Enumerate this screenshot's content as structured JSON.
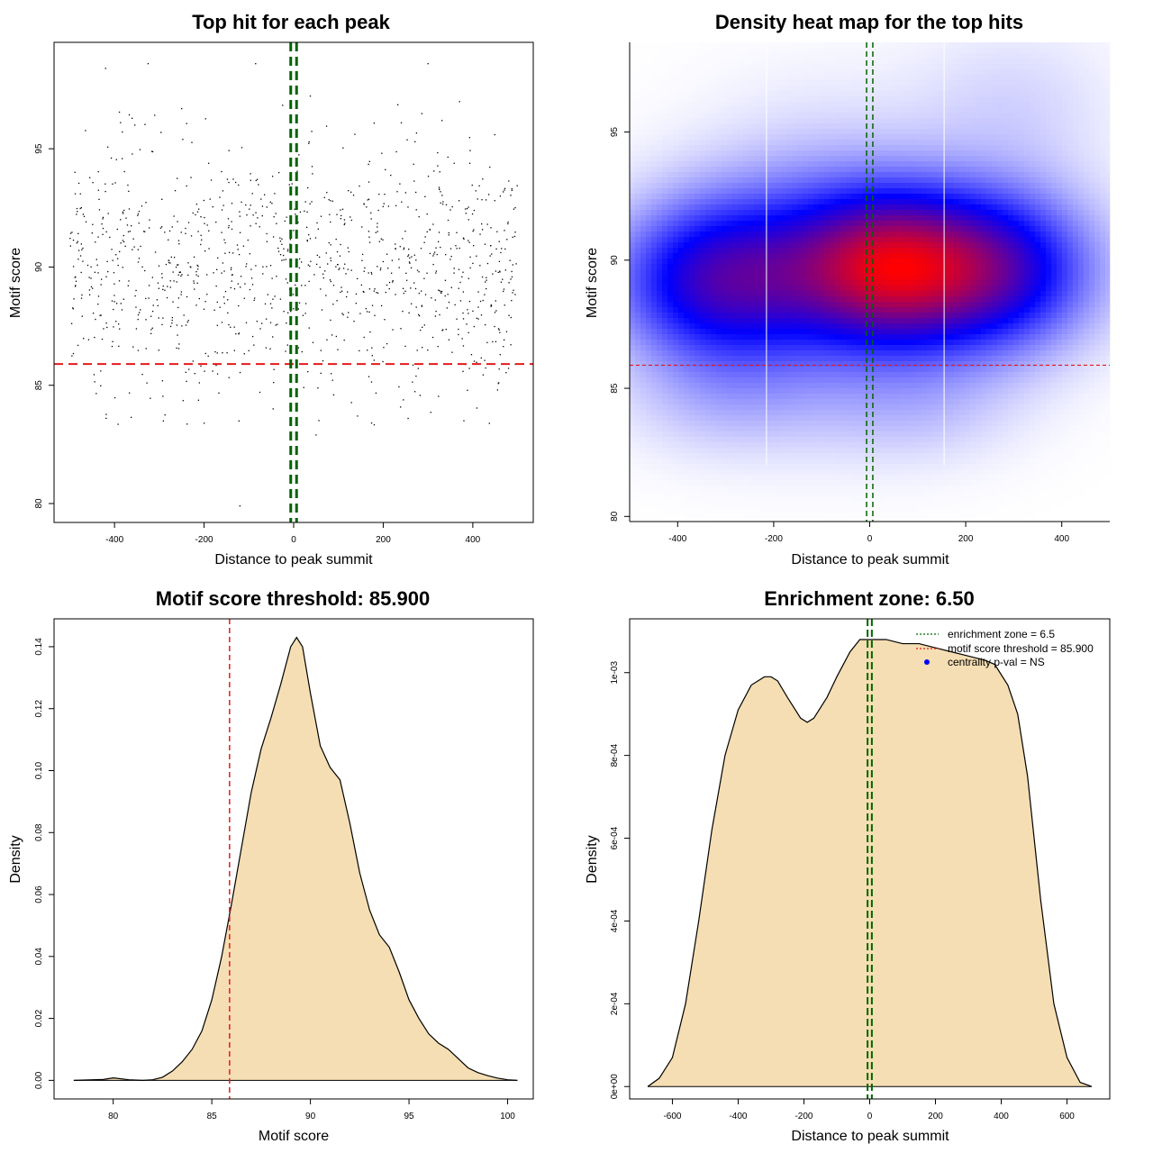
{
  "chart_data": [
    {
      "type": "scatter",
      "title": "Top hit for each peak",
      "xlabel": "Distance to peak summit",
      "ylabel": "Motif score",
      "xlim": [
        -535,
        535
      ],
      "ylim": [
        79.2,
        99.5
      ],
      "xticks": [
        -400,
        -200,
        0,
        200,
        400
      ],
      "xtick_labels": [
        "-400",
        "-200",
        "0",
        "200",
        "400"
      ],
      "yticks": [
        80,
        85,
        90,
        95
      ],
      "ytick_labels": [
        "80",
        "85",
        "90",
        "95"
      ],
      "threshold": 85.9,
      "zone": [
        -6.5,
        6.5
      ],
      "n_points": 1100,
      "outliers": [
        [
          -420,
          98.4
        ],
        [
          -325,
          98.6
        ],
        [
          -85,
          98.6
        ],
        [
          300,
          98.6
        ],
        [
          -120,
          79.9
        ],
        [
          50,
          82.9
        ],
        [
          -200,
          83.4
        ],
        [
          380,
          83.5
        ]
      ],
      "colors": {
        "points": "#000000",
        "threshold": "#e41a1c",
        "zone": "#006400"
      }
    },
    {
      "type": "heatmap",
      "title": "Density heat map for the top hits",
      "xlabel": "Distance to peak summit",
      "ylabel": "Motif score",
      "xlim": [
        -500,
        500
      ],
      "ylim": [
        79.8,
        98.5
      ],
      "xticks": [
        -400,
        -200,
        0,
        200,
        400
      ],
      "xtick_labels": [
        "-400",
        "-200",
        "0",
        "200",
        "400"
      ],
      "yticks": [
        80,
        85,
        90,
        95
      ],
      "ytick_labels": [
        "80",
        "85",
        "90",
        "95"
      ],
      "threshold": 85.9,
      "zone": [
        -6.5,
        6.5
      ],
      "blobs": [
        {
          "x": -320,
          "y": 89.2,
          "sx": 150,
          "sy": 2.2,
          "w": 0.85
        },
        {
          "x": 30,
          "y": 89.7,
          "sx": 130,
          "sy": 2.0,
          "w": 1.0
        },
        {
          "x": 250,
          "y": 89.6,
          "sx": 150,
          "sy": 2.2,
          "w": 0.95
        },
        {
          "x": -100,
          "y": 90.0,
          "sx": 180,
          "sy": 3.5,
          "w": 0.35
        },
        {
          "x": 300,
          "y": 96.0,
          "sx": 150,
          "sy": 2.2,
          "w": 0.12
        },
        {
          "x": -300,
          "y": 84.5,
          "sx": 150,
          "sy": 1.6,
          "w": 0.15
        },
        {
          "x": 100,
          "y": 84.3,
          "sx": 150,
          "sy": 1.6,
          "w": 0.15
        }
      ],
      "colors": {
        "low": "#ffffff",
        "mid": "#0000ff",
        "high": "#ff0000",
        "threshold": "#e41a1c",
        "zone": "#006400",
        "seam": "#ffffff"
      }
    },
    {
      "type": "area",
      "title": "Motif score threshold: 85.900",
      "xlabel": "Motif score",
      "ylabel": "Density",
      "xlim": [
        77.0,
        101.3
      ],
      "ylim": [
        -0.006,
        0.149
      ],
      "xticks": [
        80,
        85,
        90,
        95,
        100
      ],
      "xtick_labels": [
        "80",
        "85",
        "90",
        "95",
        "100"
      ],
      "yticks": [
        0.0,
        0.02,
        0.04,
        0.06,
        0.08,
        0.1,
        0.12,
        0.14
      ],
      "ytick_labels": [
        "0.00",
        "0.02",
        "0.04",
        "0.06",
        "0.08",
        "0.10",
        "0.12",
        "0.14"
      ],
      "threshold": 85.9,
      "x": [
        78.0,
        79.5,
        80.0,
        80.8,
        81.5,
        82.0,
        82.5,
        83.0,
        83.5,
        84.0,
        84.5,
        85.0,
        85.5,
        86.0,
        86.5,
        87.0,
        87.5,
        88.0,
        88.5,
        89.0,
        89.3,
        89.6,
        90.0,
        90.5,
        91.0,
        91.5,
        92.0,
        92.5,
        93.0,
        93.5,
        94.0,
        94.5,
        95.0,
        95.5,
        96.0,
        96.5,
        97.0,
        97.5,
        98.0,
        98.5,
        99.0,
        99.5,
        100.0,
        100.5
      ],
      "values": [
        0.0,
        0.0003,
        0.0008,
        0.0002,
        0.0,
        0.0002,
        0.001,
        0.003,
        0.006,
        0.01,
        0.016,
        0.026,
        0.04,
        0.057,
        0.075,
        0.093,
        0.107,
        0.117,
        0.128,
        0.14,
        0.143,
        0.14,
        0.125,
        0.108,
        0.101,
        0.097,
        0.083,
        0.067,
        0.055,
        0.047,
        0.043,
        0.035,
        0.026,
        0.02,
        0.015,
        0.012,
        0.01,
        0.007,
        0.004,
        0.0025,
        0.0015,
        0.0007,
        0.0002,
        0.0
      ],
      "colors": {
        "fill": "#f5deb3",
        "line": "#000000",
        "threshold": "#e41a1c"
      }
    },
    {
      "type": "area",
      "title": "Enrichment zone: 6.50",
      "xlabel": "Distance to peak summit",
      "ylabel": "Density",
      "xlim": [
        -730,
        730
      ],
      "ylim": [
        -3e-05,
        0.00113
      ],
      "xticks": [
        -600,
        -400,
        -200,
        0,
        200,
        400,
        600
      ],
      "xtick_labels": [
        "-600",
        "-400",
        "-200",
        "0",
        "200",
        "400",
        "600"
      ],
      "yticks": [
        0,
        0.0002,
        0.0004,
        0.0006,
        0.0008,
        0.001
      ],
      "ytick_labels": [
        "0e+00",
        "2e-04",
        "4e-04",
        "6e-04",
        "8e-04",
        "1e-03"
      ],
      "zone": [
        -6.5,
        6.5
      ],
      "x": [
        -675,
        -640,
        -600,
        -560,
        -520,
        -480,
        -440,
        -400,
        -360,
        -320,
        -300,
        -280,
        -250,
        -210,
        -190,
        -170,
        -130,
        -100,
        -60,
        -30,
        0,
        50,
        100,
        150,
        200,
        250,
        300,
        350,
        380,
        420,
        450,
        480,
        520,
        560,
        600,
        640,
        675
      ],
      "values": [
        0.0,
        2e-05,
        7e-05,
        0.0002,
        0.0004,
        0.00062,
        0.0008,
        0.00091,
        0.00097,
        0.00099,
        0.00099,
        0.00098,
        0.00094,
        0.00089,
        0.00088,
        0.00089,
        0.00094,
        0.00099,
        0.00105,
        0.00108,
        0.00108,
        0.00108,
        0.00107,
        0.00107,
        0.00106,
        0.00105,
        0.00104,
        0.00103,
        0.00102,
        0.00097,
        0.0009,
        0.00075,
        0.00045,
        0.0002,
        7e-05,
        1e-05,
        0.0
      ],
      "legend": [
        {
          "label": "enrichment zone = 6.5",
          "symbol": "dotted-line",
          "color": "#006400"
        },
        {
          "label": "motif score threshold = 85.900",
          "symbol": "dotted-line",
          "color": "#e41a1c"
        },
        {
          "label": "centrality p-val = NS",
          "symbol": "dot",
          "color": "#0000ff"
        }
      ],
      "legend_position": "top-right",
      "colors": {
        "fill": "#f5deb3",
        "line": "#000000",
        "zone": "#006400"
      }
    }
  ]
}
